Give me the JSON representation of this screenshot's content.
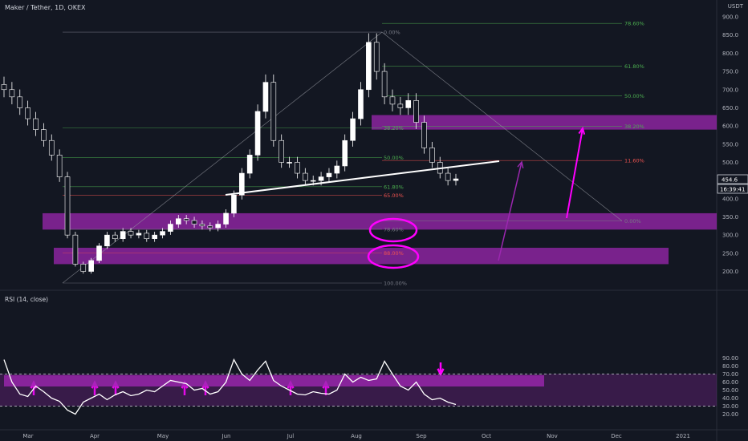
{
  "title": "Maker / Tether, 1D, OKEX",
  "currency": "USDT",
  "price_badge": "454.6",
  "countdown_badge": "16:39:41",
  "rsi_title": "RSI (14, close)",
  "colors": {
    "background": "#131722",
    "band": "#9c27b0",
    "arrow": "#ff00ff",
    "trendline": "#ffffff",
    "fib_green": "#4caf50",
    "fib_red": "#ef5350",
    "fib_grey": "#787b86"
  },
  "chart_data": [
    {
      "type": "candlestick",
      "title": "Maker / Tether, 1D, OKEX",
      "ylabel": "USDT",
      "ylim": [
        170,
        910
      ],
      "yticks": [
        200,
        250,
        300,
        350,
        400,
        450,
        500,
        550,
        600,
        650,
        700,
        750,
        800,
        850,
        900
      ],
      "ytick_labels": [
        "200.0",
        "250.0",
        "300.0",
        "350.0",
        "400.0",
        "450.0",
        "500.0",
        "550.0",
        "600.0",
        "650.0",
        "700.0",
        "750.0",
        "800.0",
        "850.0",
        "900.0"
      ],
      "x_labels": [
        "Mar",
        "Apr",
        "May",
        "Jun",
        "Jul",
        "Aug",
        "Sep",
        "Oct",
        "Nov",
        "Dec",
        "2021"
      ],
      "last_price": 454.6,
      "series": [
        {
          "values": [
            700,
            680,
            650,
            620,
            590,
            560,
            520,
            460,
            300,
            220,
            200,
            230,
            270,
            300,
            290,
            310,
            300,
            305,
            290,
            300,
            310,
            330,
            345,
            340,
            330,
            325,
            320,
            330,
            360,
            410,
            470,
            520,
            640,
            720,
            560,
            500,
            500,
            470,
            450,
            450,
            460,
            470,
            490,
            560,
            620,
            700,
            830,
            750,
            680,
            660,
            650,
            670,
            610,
            540,
            500,
            470,
            450,
            454.6
          ]
        }
      ],
      "fib_top": [
        {
          "label": "0.00%",
          "price": 858
        },
        {
          "label": "38.20%",
          "price": 595
        },
        {
          "label": "50.00%",
          "price": 513
        },
        {
          "label": "61.80%",
          "price": 433
        },
        {
          "label": "65.00%",
          "price": 410
        },
        {
          "label": "78.60%",
          "price": 316
        },
        {
          "label": "88.00%",
          "price": 251
        },
        {
          "label": "100.00%",
          "price": 168
        }
      ],
      "fib_right": [
        {
          "label": "78.60%",
          "price": 882
        },
        {
          "label": "61.80%",
          "price": 765
        },
        {
          "label": "50.00%",
          "price": 683
        },
        {
          "label": "38.20%",
          "price": 599
        },
        {
          "label": "11.60%",
          "price": 505
        },
        {
          "label": "0.00%",
          "price": 339
        }
      ],
      "zones": [
        {
          "name": "upper-zone",
          "low": 590,
          "high": 630
        },
        {
          "name": "middle-zone",
          "low": 315,
          "high": 360
        },
        {
          "name": "lower-zone",
          "low": 220,
          "high": 265
        }
      ]
    },
    {
      "type": "line",
      "title": "RSI (14, close)",
      "ylim": [
        15,
        95
      ],
      "yticks": [
        20,
        30,
        40,
        50,
        60,
        70,
        80,
        90
      ],
      "ytick_labels": [
        "20.00",
        "30.00",
        "40.00",
        "50.00",
        "60.00",
        "70.00",
        "80.00",
        "90.00"
      ],
      "overbought": 70,
      "oversold": 30,
      "series": [
        {
          "values": [
            88,
            60,
            45,
            42,
            55,
            48,
            40,
            36,
            25,
            20,
            35,
            40,
            45,
            38,
            44,
            48,
            43,
            45,
            50,
            48,
            55,
            62,
            60,
            58,
            50,
            52,
            45,
            48,
            60,
            88,
            70,
            62,
            75,
            86,
            62,
            55,
            50,
            45,
            44,
            48,
            46,
            45,
            50,
            70,
            60,
            66,
            62,
            64,
            86,
            70,
            55,
            50,
            60,
            45,
            38,
            40,
            35,
            32
          ]
        }
      ]
    }
  ]
}
